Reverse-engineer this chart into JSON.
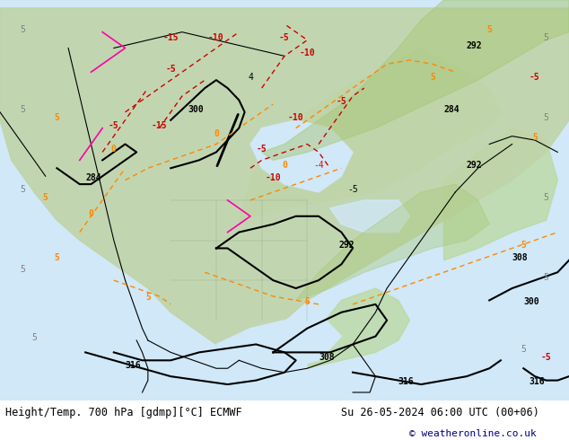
{
  "title_left": "Height/Temp. 700 hPa [gdmp][°C] ECMWF",
  "title_right": "Su 26-05-2024 06:00 UTC (00+06)",
  "copyright": "© weatheronline.co.uk",
  "background_color": "#ffffff",
  "map_bg_color": "#e8f4f8",
  "land_color": "#d4e8c0",
  "bottom_bar_color": "#e0e0e0",
  "title_fontsize": 9,
  "copyright_color": "#000080",
  "font_family": "monospace"
}
